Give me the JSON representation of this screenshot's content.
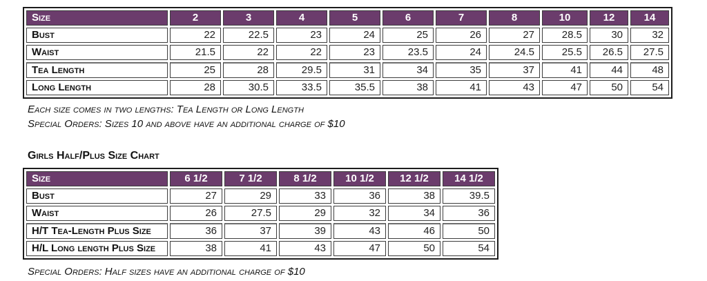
{
  "colors": {
    "header_bg": "#6b3c6c",
    "header_fg": "#ffffff"
  },
  "size_chart": {
    "header": [
      "Size",
      "2",
      "3",
      "4",
      "5",
      "6",
      "7",
      "8",
      "10",
      "12",
      "14"
    ],
    "rows": [
      {
        "label": "Bust",
        "values": [
          "22",
          "22.5",
          "23",
          "24",
          "25",
          "26",
          "27",
          "28.5",
          "30",
          "32"
        ]
      },
      {
        "label": "Waist",
        "values": [
          "21.5",
          "22",
          "22",
          "23",
          "23.5",
          "24",
          "24.5",
          "25.5",
          "26.5",
          "27.5"
        ]
      },
      {
        "label": "Tea Length",
        "values": [
          "25",
          "28",
          "29.5",
          "31",
          "34",
          "35",
          "37",
          "41",
          "44",
          "48"
        ]
      },
      {
        "label": "Long Length",
        "values": [
          "28",
          "30.5",
          "33.5",
          "35.5",
          "38",
          "41",
          "43",
          "47",
          "50",
          "54"
        ]
      }
    ]
  },
  "notes": {
    "lengths": "Each size comes in two lengths: Tea Length or Long Length",
    "special_sizes": "Special Orders: Sizes 10 and above have an additional charge of $10",
    "special_half": "Special Orders: Half sizes have an additional charge of $10"
  },
  "half_size_chart": {
    "title": "Girls Half/Plus Size Chart",
    "header": [
      "Size",
      "6 1/2",
      "7 1/2",
      "8 1/2",
      "10 1/2",
      "12 1/2",
      "14 1/2"
    ],
    "rows": [
      {
        "label": "Bust",
        "values": [
          "27",
          "29",
          "33",
          "36",
          "38",
          "39.5"
        ]
      },
      {
        "label": "Waist",
        "values": [
          "26",
          "27.5",
          "29",
          "32",
          "34",
          "36"
        ]
      },
      {
        "label": "H/T Tea-Length Plus Size",
        "values": [
          "36",
          "37",
          "39",
          "43",
          "46",
          "50"
        ]
      },
      {
        "label": "H/L Long length Plus Size",
        "values": [
          "38",
          "41",
          "43",
          "47",
          "50",
          "54"
        ]
      }
    ]
  }
}
